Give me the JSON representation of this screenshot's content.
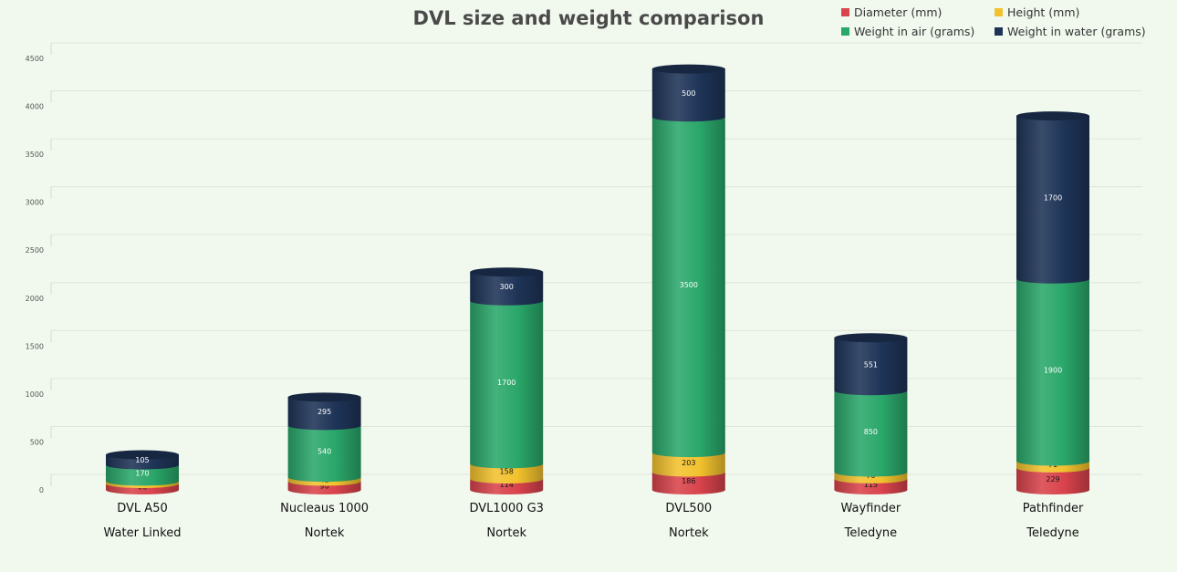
{
  "chart_data": {
    "type": "bar",
    "stacked": true,
    "title": "DVL size and weight comparison",
    "xlabel": "",
    "ylabel": "",
    "ylim": [
      0,
      4500
    ],
    "yticks": [
      0,
      500,
      1000,
      1500,
      2000,
      2500,
      3000,
      3500,
      4000,
      4500
    ],
    "grid": true,
    "legend_position": "top-right",
    "categories": [
      "DVL A50",
      "Nucleaus 1000",
      "DVL1000 G3",
      "DVL500",
      "Wayfinder",
      "Pathfinder"
    ],
    "manufacturers": [
      "Water Linked",
      "Nortek",
      "Nortek",
      "Nortek",
      "Teledyne",
      "Teledyne"
    ],
    "series": [
      {
        "name": "Diameter (mm)",
        "color": "#d9434c",
        "values": [
          66,
          90,
          114,
          186,
          115,
          229
        ]
      },
      {
        "name": "Height (mm)",
        "color": "#f2c22e",
        "values": [
          25,
          42,
          158,
          203,
          70,
          71
        ]
      },
      {
        "name": "Weight in air (grams)",
        "color": "#2aa76a",
        "values": [
          170,
          540,
          1700,
          3500,
          850,
          1900
        ]
      },
      {
        "name": "Weight in water (grams)",
        "color": "#1e3457",
        "values": [
          105,
          295,
          300,
          500,
          551,
          1700
        ]
      }
    ]
  }
}
